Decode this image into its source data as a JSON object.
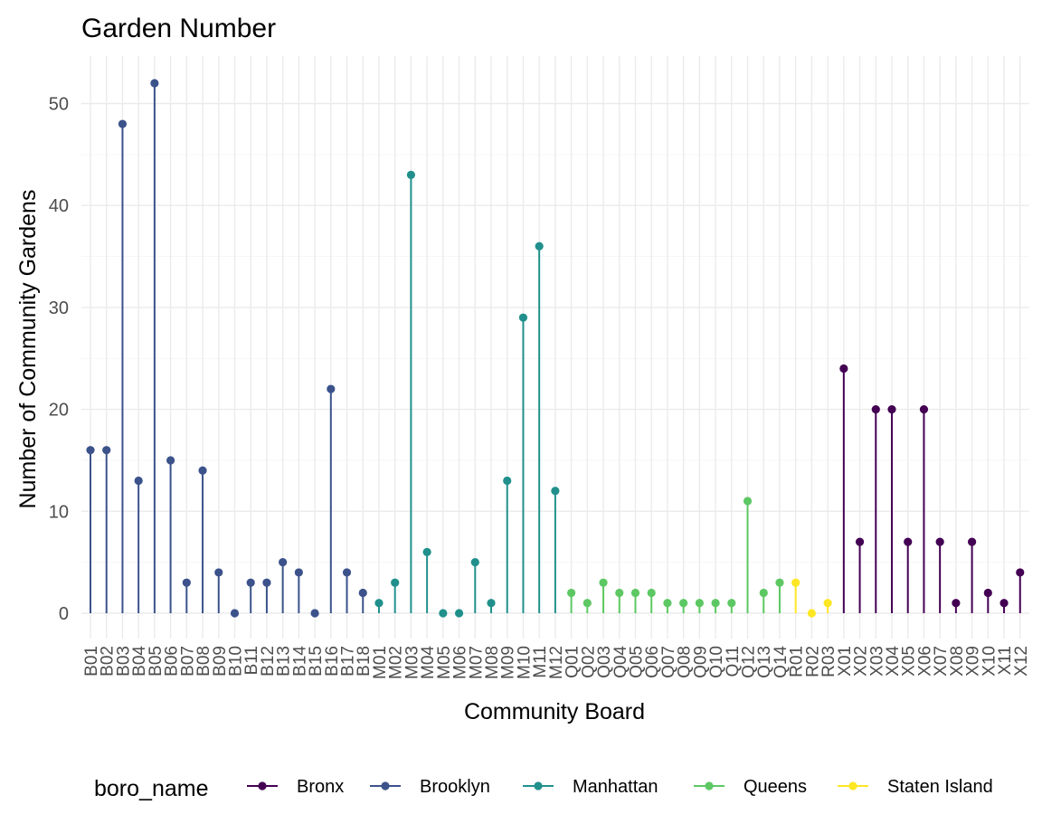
{
  "chart_data": {
    "type": "lollipop",
    "title": "Garden Number",
    "xlabel": "Community Board",
    "ylabel": "Number of Community Gardens",
    "ylim": [
      0,
      55
    ],
    "yticks": [
      0,
      10,
      20,
      30,
      40,
      50
    ],
    "grid": true,
    "legend": {
      "title": "boro_name",
      "position": "bottom",
      "entries": [
        {
          "name": "Bronx",
          "color": "#440154"
        },
        {
          "name": "Brooklyn",
          "color": "#3b528b"
        },
        {
          "name": "Manhattan",
          "color": "#21908c"
        },
        {
          "name": "Queens",
          "color": "#5dc863"
        },
        {
          "name": "Staten Island",
          "color": "#fde725"
        }
      ]
    },
    "categories": [
      "B01",
      "B02",
      "B03",
      "B04",
      "B05",
      "B06",
      "B07",
      "B08",
      "B09",
      "B10",
      "B11",
      "B12",
      "B13",
      "B14",
      "B15",
      "B16",
      "B17",
      "B18",
      "M01",
      "M02",
      "M03",
      "M04",
      "M05",
      "M06",
      "M07",
      "M08",
      "M09",
      "M10",
      "M11",
      "M12",
      "Q01",
      "Q02",
      "Q03",
      "Q04",
      "Q05",
      "Q06",
      "Q07",
      "Q08",
      "Q09",
      "Q10",
      "Q11",
      "Q12",
      "Q13",
      "Q14",
      "R01",
      "R02",
      "R03",
      "X01",
      "X02",
      "X03",
      "X04",
      "X05",
      "X06",
      "X07",
      "X08",
      "X09",
      "X10",
      "X11",
      "X12"
    ],
    "values": [
      16,
      16,
      48,
      13,
      52,
      15,
      3,
      14,
      4,
      0,
      3,
      3,
      5,
      4,
      0,
      22,
      4,
      2,
      1,
      3,
      43,
      6,
      0,
      0,
      5,
      1,
      13,
      29,
      36,
      12,
      2,
      1,
      3,
      2,
      2,
      2,
      1,
      1,
      1,
      1,
      1,
      11,
      2,
      3,
      3,
      0,
      1,
      24,
      7,
      20,
      20,
      7,
      20,
      7,
      1,
      7,
      2,
      1,
      4
    ],
    "groups": [
      "Brooklyn",
      "Brooklyn",
      "Brooklyn",
      "Brooklyn",
      "Brooklyn",
      "Brooklyn",
      "Brooklyn",
      "Brooklyn",
      "Brooklyn",
      "Brooklyn",
      "Brooklyn",
      "Brooklyn",
      "Brooklyn",
      "Brooklyn",
      "Brooklyn",
      "Brooklyn",
      "Brooklyn",
      "Brooklyn",
      "Manhattan",
      "Manhattan",
      "Manhattan",
      "Manhattan",
      "Manhattan",
      "Manhattan",
      "Manhattan",
      "Manhattan",
      "Manhattan",
      "Manhattan",
      "Manhattan",
      "Manhattan",
      "Queens",
      "Queens",
      "Queens",
      "Queens",
      "Queens",
      "Queens",
      "Queens",
      "Queens",
      "Queens",
      "Queens",
      "Queens",
      "Queens",
      "Queens",
      "Queens",
      "Staten Island",
      "Staten Island",
      "Staten Island",
      "Bronx",
      "Bronx",
      "Bronx",
      "Bronx",
      "Bronx",
      "Bronx",
      "Bronx",
      "Bronx",
      "Bronx",
      "Bronx",
      "Bronx",
      "Bronx"
    ]
  }
}
